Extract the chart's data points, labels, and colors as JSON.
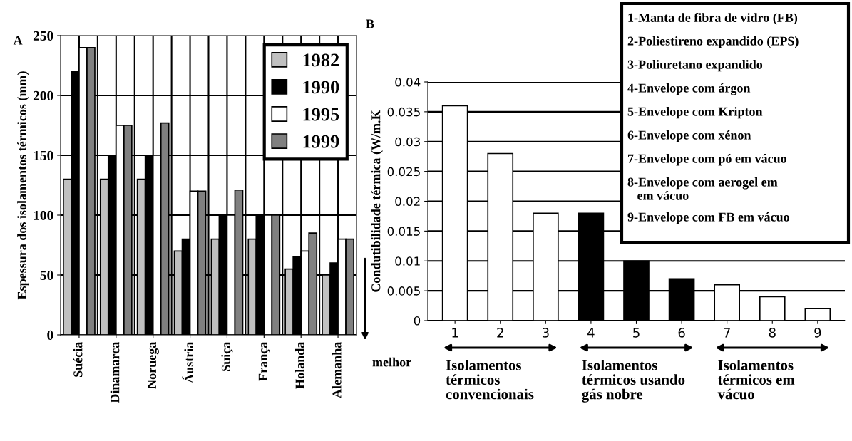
{
  "chart_data": [
    {
      "type": "bar",
      "title": "A",
      "ylabel": "Espessura dos isolamentos térmicos (mm)",
      "categories": [
        "Suécia",
        "Dinamarca",
        "Noruega",
        "Áustria",
        "Suiça",
        "França",
        "Holanda",
        "Alemanha"
      ],
      "series": [
        {
          "name": "1982",
          "color": "#c0c0c0",
          "values": [
            130,
            130,
            130,
            70,
            80,
            80,
            55,
            50
          ]
        },
        {
          "name": "1990",
          "color": "#000000",
          "values": [
            220,
            150,
            150,
            80,
            100,
            100,
            65,
            60
          ]
        },
        {
          "name": "1995",
          "color": "#ffffff",
          "values": [
            240,
            175,
            150,
            120,
            100,
            100,
            70,
            80
          ]
        },
        {
          "name": "1999",
          "color": "#808080",
          "values": [
            240,
            175,
            177,
            120,
            121,
            100,
            85,
            80
          ]
        }
      ],
      "ylim": [
        0,
        250
      ],
      "yticks": [
        0,
        50,
        100,
        150,
        200,
        250
      ],
      "grid": true,
      "legend": "top right"
    },
    {
      "type": "bar",
      "title": "B",
      "ylabel": "Condutibilidade térmica (W/m.K",
      "categories": [
        "1",
        "2",
        "3",
        "4",
        "5",
        "6",
        "7",
        "8",
        "9"
      ],
      "values": [
        0.036,
        0.028,
        0.018,
        0.018,
        0.01,
        0.007,
        0.006,
        0.004,
        0.002
      ],
      "colors": [
        "#ffffff",
        "#ffffff",
        "#ffffff",
        "#000000",
        "#000000",
        "#000000",
        "#ffffff",
        "#ffffff",
        "#ffffff"
      ],
      "ylim": [
        0,
        0.04
      ],
      "yticks": [
        0,
        0.005,
        0.01,
        0.015,
        0.02,
        0.025,
        0.03,
        0.035,
        0.04
      ],
      "grid": "y",
      "annotations": [
        "1-Manta de fibra de vidro (FB)",
        "2-Poliestireno expandido (EPS)",
        "3-Poliuretano expandido",
        "4-Envelope com árgon",
        "5-Envelope com Kripton",
        "6-Envelope com xénon",
        "7-Envelope com pó em vácuo",
        "8-Envelope com aerogel em\n   em vácuo",
        "9-Envelope com FB em vácuo",
        "melhor",
        "Isolamentos\ntérmicos\nconvencionais",
        "Isolamentos\ntérmicos usando\ngás nobre",
        "Isolamentos\ntérmicos em\nvácuo"
      ]
    }
  ]
}
